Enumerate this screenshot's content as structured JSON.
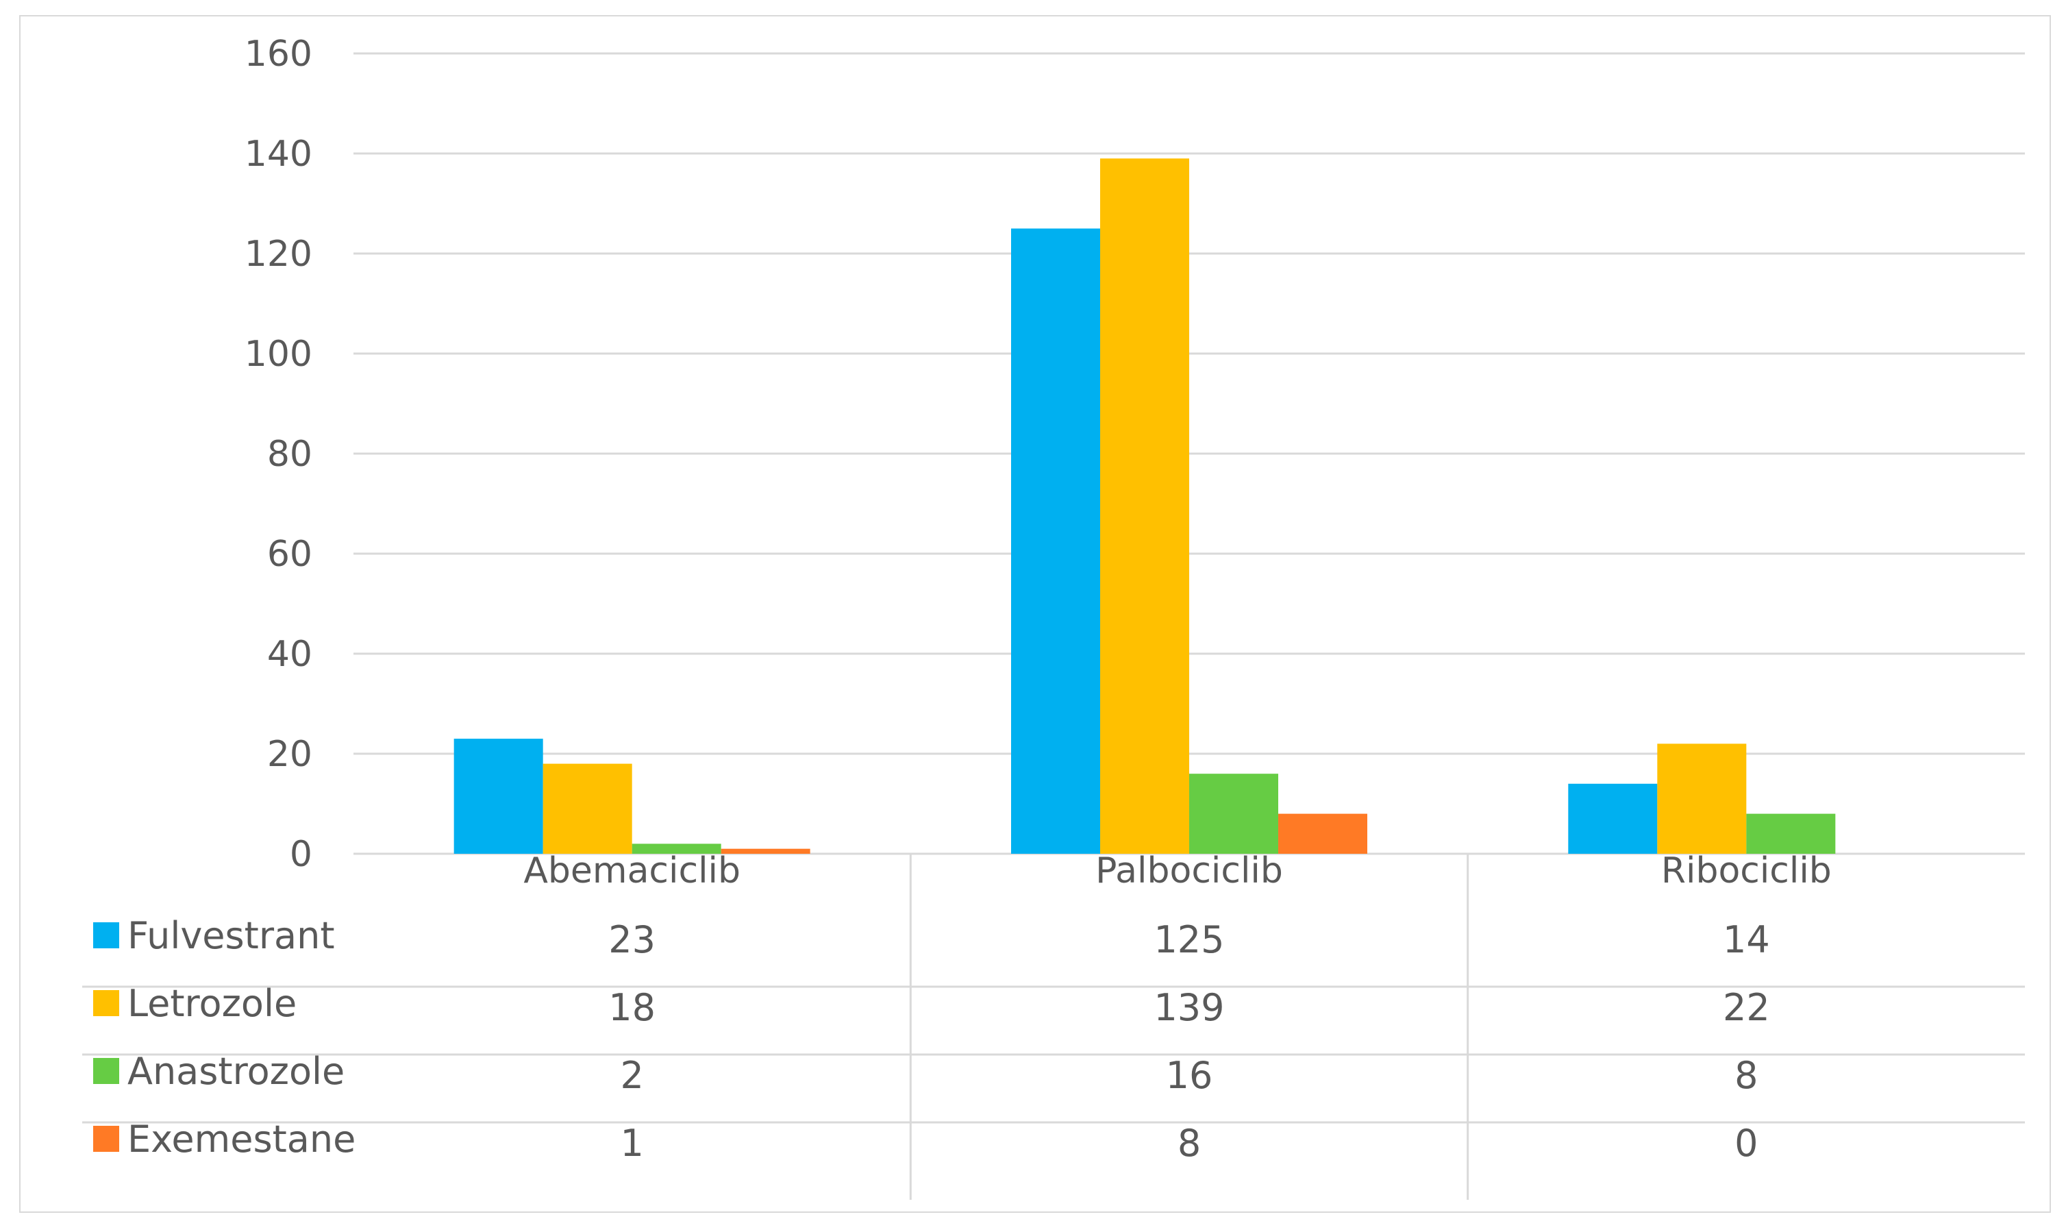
{
  "chart_data": {
    "type": "bar",
    "categories": [
      "Abemaciclib",
      "Palbociclib",
      "Ribociclib"
    ],
    "series": [
      {
        "name": "Fulvestrant",
        "color": "#00b0f0",
        "values": [
          23,
          125,
          14
        ]
      },
      {
        "name": "Letrozole",
        "color": "#ffc000",
        "values": [
          18,
          139,
          22
        ]
      },
      {
        "name": "Anastrozole",
        "color": "#66cc44",
        "values": [
          2,
          16,
          8
        ]
      },
      {
        "name": "Exemestane",
        "color": "#ff7a25",
        "values": [
          1,
          8,
          0
        ]
      }
    ],
    "ylim": [
      0,
      160
    ],
    "yticks": [
      0,
      20,
      40,
      60,
      80,
      100,
      120,
      140,
      160
    ],
    "grid": true,
    "legend": "data-table-below"
  }
}
